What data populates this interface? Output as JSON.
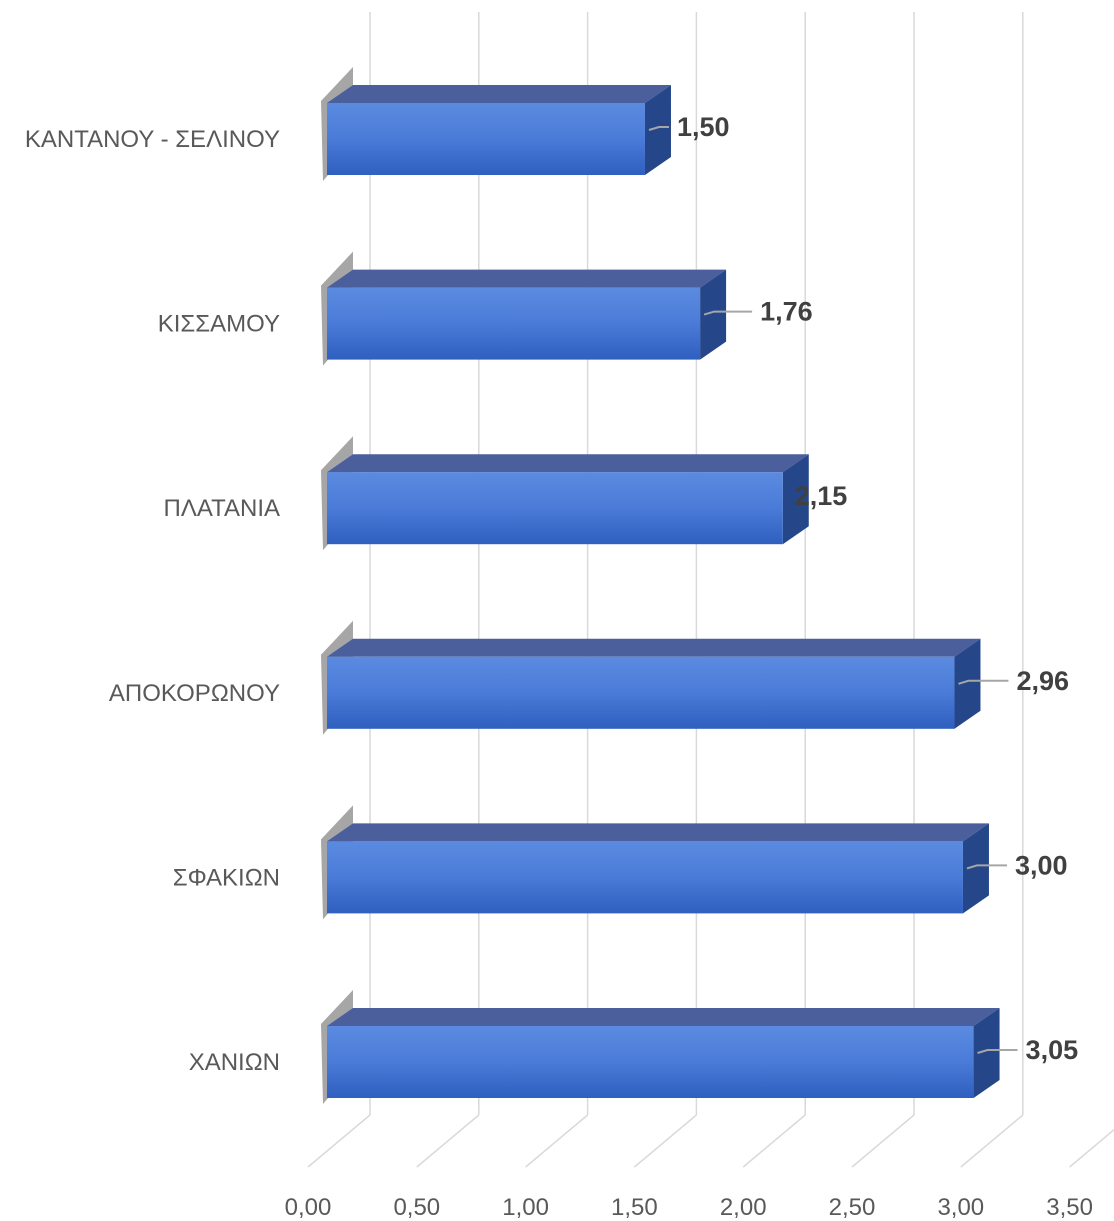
{
  "chart_data": {
    "type": "bar",
    "orientation": "horizontal",
    "style": "3d-clustered-bar",
    "categories": [
      "ΚΑΝΤΑΝΟΥ - ΣΕΛΙΝΟΥ",
      "ΚΙΣΣΑΜΟΥ",
      "ΠΛΑΤΑΝΙΑ",
      "ΑΠΟΚΟΡΩΝΟΥ",
      "ΣΦΑΚΙΩΝ",
      "ΧΑΝΙΩΝ"
    ],
    "values": [
      1.5,
      1.76,
      2.15,
      2.96,
      3.0,
      3.05
    ],
    "data_labels": [
      "1,50",
      "1,76",
      "2,15",
      "2,96",
      "3,00",
      "3,05"
    ],
    "x_ticks": [
      "0,00",
      "0,50",
      "1,00",
      "1,50",
      "2,00",
      "2,50",
      "3,00",
      "3,50"
    ],
    "xlim": [
      0,
      3.5
    ],
    "title": "",
    "xlabel": "",
    "ylabel": "",
    "grid": true,
    "legend": "none",
    "colors": {
      "bar_front": "#4472c4",
      "bar_top": "#4a5f9c",
      "bar_side": "#25478a",
      "grid": "#d9d9d9",
      "text": "#595959",
      "label_text": "#404040"
    }
  }
}
